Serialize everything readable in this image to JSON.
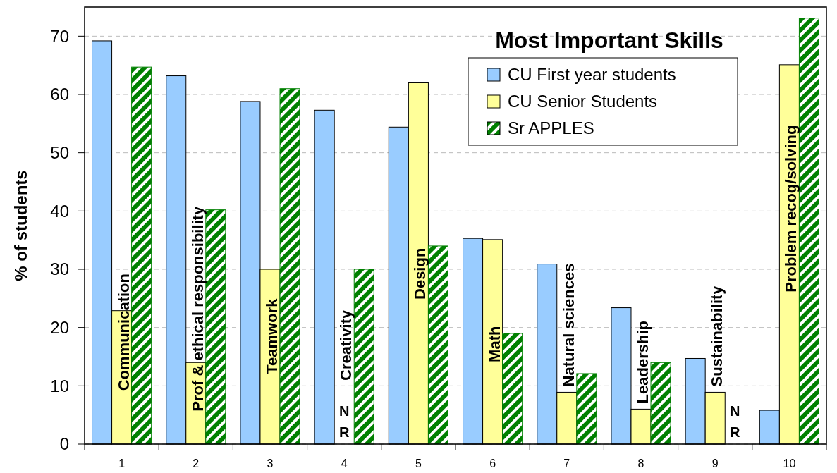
{
  "chart_data": {
    "type": "bar",
    "legend_title": "Most Important Skills",
    "ylabel": "% of students",
    "categories": [
      "1",
      "2",
      "3",
      "4",
      "5",
      "6",
      "7",
      "8",
      "9",
      "10"
    ],
    "series": [
      {
        "name": "CU First year students",
        "color": "#99ccff",
        "values": [
          69.2,
          63.2,
          58.8,
          57.3,
          54.4,
          35.3,
          30.9,
          23.4,
          14.7,
          5.8
        ]
      },
      {
        "name": "CU Senior Students",
        "color": "#ffff99",
        "values": [
          22.9,
          14.0,
          30.0,
          null,
          62.0,
          35.1,
          8.9,
          6.0,
          8.9,
          65.1
        ],
        "value_labels": [
          null,
          null,
          null,
          "N R",
          null,
          null,
          null,
          null,
          null,
          null
        ]
      },
      {
        "name": "Sr APPLES",
        "color": "#008000",
        "values": [
          64.7,
          40.2,
          61.0,
          30.0,
          34.0,
          19.0,
          12.1,
          14.0,
          null,
          73.1
        ],
        "value_labels": [
          null,
          null,
          null,
          null,
          null,
          null,
          null,
          null,
          "N R",
          null
        ]
      }
    ],
    "ylim": [
      0,
      75
    ],
    "yticks": [
      0,
      10,
      20,
      30,
      40,
      50,
      60,
      70
    ],
    "grid": "y",
    "legend": "top right",
    "annotations": [
      "Communication",
      "Prof & ethical responsibility",
      "Teamwork",
      "Creativity",
      "Design",
      "Math",
      "Natural sciences",
      "Leadership",
      "Sustainability",
      "Problem recog/solving"
    ]
  }
}
